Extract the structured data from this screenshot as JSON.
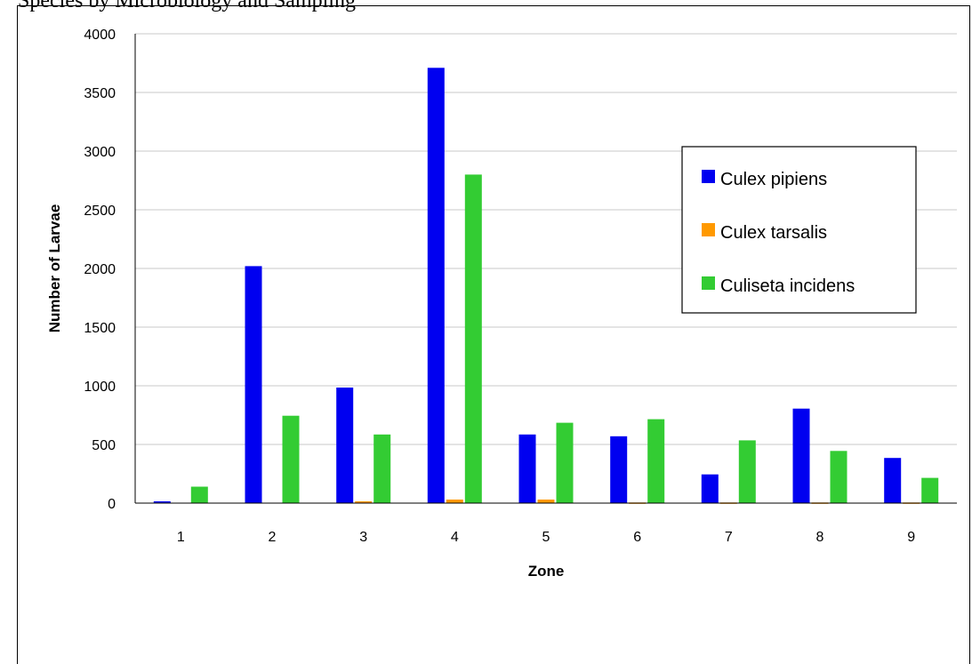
{
  "header": {
    "caption": "Species by Microbiology and Sampling"
  },
  "chart_data": {
    "type": "bar",
    "title": "",
    "xlabel": "Zone",
    "ylabel": "Number of Larvae",
    "categories": [
      "1",
      "2",
      "3",
      "4",
      "5",
      "6",
      "7",
      "8",
      "9"
    ],
    "ylim": [
      0,
      4000
    ],
    "yticks": [
      0,
      500,
      1000,
      1500,
      2000,
      2500,
      3000,
      3500,
      4000
    ],
    "grid": true,
    "legend_position": "right",
    "series": [
      {
        "name": "Culex pipiens",
        "color": "#0000F0",
        "values": [
          15,
          2020,
          985,
          3710,
          585,
          570,
          245,
          805,
          385
        ]
      },
      {
        "name": "Culex tarsalis",
        "color": "#FF9900",
        "values": [
          0,
          0,
          15,
          30,
          30,
          5,
          5,
          5,
          5
        ]
      },
      {
        "name": "Culiseta incidens",
        "color": "#33CC33",
        "values": [
          140,
          745,
          585,
          2800,
          685,
          715,
          535,
          445,
          215
        ]
      }
    ]
  }
}
